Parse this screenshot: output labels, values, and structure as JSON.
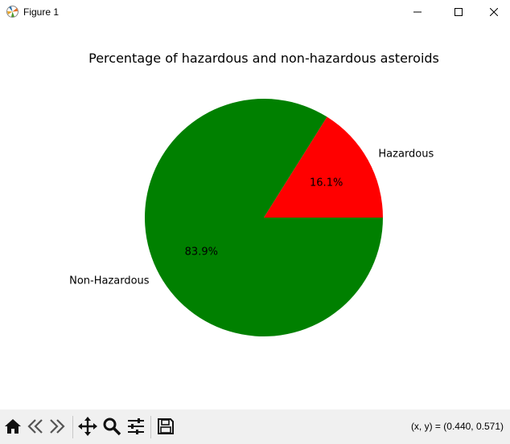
{
  "window": {
    "title": "Figure 1"
  },
  "chart_data": {
    "type": "pie",
    "title": "Percentage of hazardous and non-hazardous asteroids",
    "categories": [
      "Hazardous",
      "Non-Hazardous"
    ],
    "values": [
      16.1,
      83.9
    ],
    "labels": [
      "16.1%",
      "83.9%"
    ],
    "colors": [
      "#ff0000",
      "#008000"
    ],
    "start_angle_deg": 0
  },
  "toolbar": {
    "buttons": [
      "home-icon",
      "back-icon",
      "forward-icon",
      "pan-icon",
      "zoom-icon",
      "configure-subplots-icon",
      "save-icon"
    ],
    "coords": "(x, y) = (0.440, 0.571)"
  }
}
